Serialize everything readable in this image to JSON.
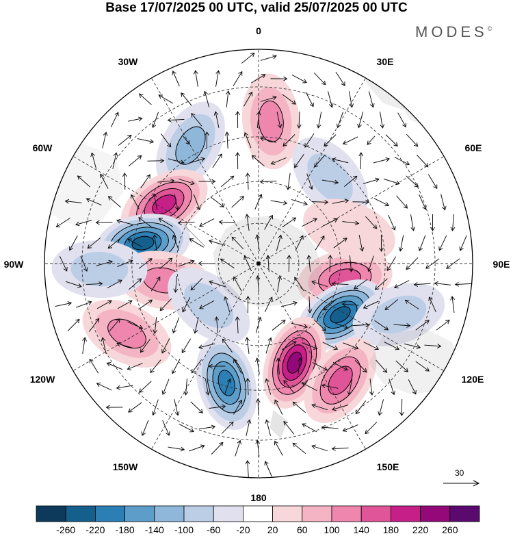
{
  "title": "Base 17/07/2025 00 UTC, valid 25/07/2025 00 UTC",
  "brand": "MODES",
  "brand_mark": "©",
  "map": {
    "projection": "south-polar-stereographic",
    "longitude_labels": {
      "top": "0",
      "top_right": "30E",
      "right_upper": "60E",
      "right": "90E",
      "right_lower": "120E",
      "bottom_right": "150E",
      "bottom": "180",
      "bottom_left": "150W",
      "left_lower": "120W",
      "left": "90W",
      "left_upper": "60W",
      "top_left": "30W"
    },
    "vector_reference": "30",
    "anomaly_centers": [
      {
        "lon": 5,
        "lat": -40,
        "sign": "positive",
        "magnitude": 120
      },
      {
        "lon": -30,
        "lat": -42,
        "sign": "negative",
        "magnitude": -120
      },
      {
        "lon": 40,
        "lat": -50,
        "sign": "negative",
        "magnitude": -90
      },
      {
        "lon": -58,
        "lat": -50,
        "sign": "positive",
        "magnitude": 230
      },
      {
        "lon": -80,
        "lat": -48,
        "sign": "negative",
        "magnitude": -250
      },
      {
        "lon": 100,
        "lat": -58,
        "sign": "positive",
        "magnitude": 170
      },
      {
        "lon": 122,
        "lat": -55,
        "sign": "negative",
        "magnitude": -250
      },
      {
        "lon": 110,
        "lat": -38,
        "sign": "negative",
        "magnitude": -100
      },
      {
        "lon": 160,
        "lat": -52,
        "sign": "positive",
        "magnitude": 240
      },
      {
        "lon": 145,
        "lat": -40,
        "sign": "positive",
        "magnitude": 180
      },
      {
        "lon": -165,
        "lat": -46,
        "sign": "negative",
        "magnitude": -200
      },
      {
        "lon": -118,
        "lat": -38,
        "sign": "positive",
        "magnitude": 120
      },
      {
        "lon": -100,
        "lat": -55,
        "sign": "positive",
        "magnitude": 150
      },
      {
        "lon": -92,
        "lat": -35,
        "sign": "negative",
        "magnitude": -80
      },
      {
        "lon": -130,
        "lat": -66,
        "sign": "negative",
        "magnitude": -90
      },
      {
        "lon": 70,
        "lat": -55,
        "sign": "positive",
        "magnitude": 70
      }
    ]
  },
  "colorbar": {
    "ticks": [
      "-260",
      "-220",
      "-180",
      "-140",
      "-100",
      "-60",
      "-20",
      "20",
      "60",
      "100",
      "140",
      "180",
      "220",
      "260"
    ],
    "colors": [
      "#0d3a5a",
      "#145f8c",
      "#2b7fb4",
      "#5d9dc9",
      "#8fb7da",
      "#bccde6",
      "#e0e0ef",
      "#ffffff",
      "#f7d7d9",
      "#f4b4c4",
      "#ee86ad",
      "#e05597",
      "#c61f87",
      "#94087a",
      "#5a0a6e"
    ]
  },
  "colors": {
    "negative": "#145f8c",
    "positive": "#c61f87"
  }
}
